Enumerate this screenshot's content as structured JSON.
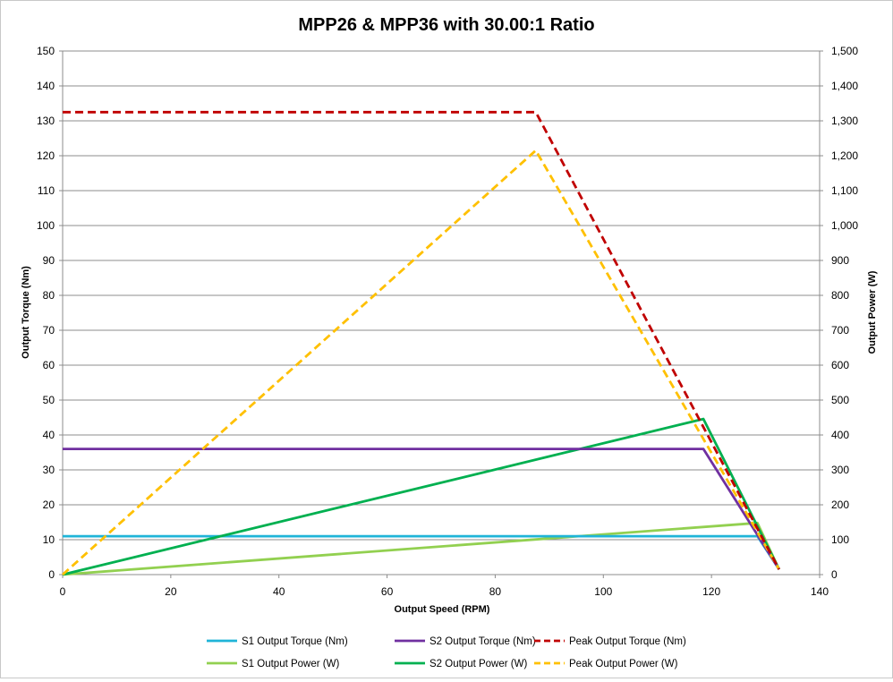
{
  "chart_data": {
    "type": "line",
    "title": "MPP26 & MPP36 with 30.00:1 Ratio",
    "xlabel": "Output Speed (RPM)",
    "ylabel": "Output Torque (Nm)",
    "y2label": "Output Power (W)",
    "xlim": [
      0,
      140
    ],
    "ylim": [
      0,
      150
    ],
    "y2lim": [
      0,
      1500
    ],
    "x_ticks": [
      "0",
      "20",
      "40",
      "60",
      "80",
      "100",
      "120",
      "140"
    ],
    "y_ticks": [
      "0",
      "10",
      "20",
      "30",
      "40",
      "50",
      "60",
      "70",
      "80",
      "90",
      "100",
      "110",
      "120",
      "130",
      "140",
      "150"
    ],
    "y2_ticks": [
      "0",
      "100",
      "200",
      "300",
      "400",
      "500",
      "600",
      "700",
      "800",
      "900",
      "1,000",
      "1,100",
      "1,200",
      "1,300",
      "1,400",
      "1,500"
    ],
    "x_tick_values": [
      0,
      20,
      40,
      60,
      80,
      100,
      120,
      140
    ],
    "y_tick_values": [
      0,
      10,
      20,
      30,
      40,
      50,
      60,
      70,
      80,
      90,
      100,
      110,
      120,
      130,
      140,
      150
    ],
    "y2_tick_values": [
      0,
      100,
      200,
      300,
      400,
      500,
      600,
      700,
      800,
      900,
      1000,
      1100,
      1200,
      1300,
      1400,
      1500
    ],
    "grid": true,
    "legend_position": "bottom",
    "series": [
      {
        "name": "S1 Output Torque (Nm)",
        "axis": "left",
        "color": "#1fb4d8",
        "dash": false,
        "x": [
          0,
          128.5,
          132.5
        ],
        "y": [
          11,
          11,
          1.5
        ]
      },
      {
        "name": "S2 Output Torque (Nm)",
        "axis": "left",
        "color": "#7030a0",
        "dash": false,
        "x": [
          0,
          118.5,
          132.5
        ],
        "y": [
          36,
          36,
          1.5
        ]
      },
      {
        "name": "Peak Output Torque (Nm)",
        "axis": "left",
        "color": "#c00000",
        "dash": true,
        "x": [
          0,
          87.5,
          132.5
        ],
        "y": [
          132.5,
          132.5,
          1.5
        ]
      },
      {
        "name": "S1 Output Power (W)",
        "axis": "right",
        "color": "#92d050",
        "dash": false,
        "x": [
          0,
          128.5,
          132.5
        ],
        "y": [
          0,
          148,
          15
        ]
      },
      {
        "name": "S2 Output Power (W)",
        "axis": "right",
        "color": "#00b050",
        "dash": false,
        "x": [
          0,
          118.5,
          132.5
        ],
        "y": [
          0,
          446,
          15
        ]
      },
      {
        "name": "Peak Output Power (W)",
        "axis": "right",
        "color": "#ffc000",
        "dash": true,
        "x": [
          0,
          87.5,
          132.5
        ],
        "y": [
          0,
          1215,
          15
        ]
      }
    ]
  }
}
